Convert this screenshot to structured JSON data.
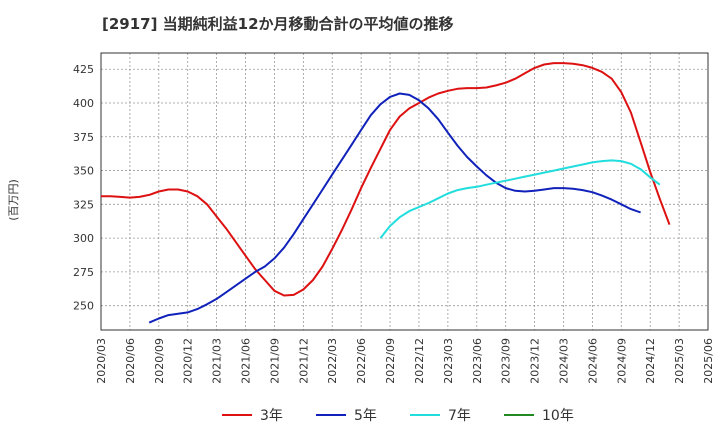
{
  "chart_data": {
    "type": "line",
    "title": "[2917]  当期純利益12か月移動合計の平均値の推移",
    "ylabel": "(百万円)",
    "xlabel": "",
    "ylim": [
      232,
      437
    ],
    "xlim": [
      "2020-03",
      "2025-06"
    ],
    "yticks": [
      250,
      275,
      300,
      325,
      350,
      375,
      400,
      425
    ],
    "xticks": [
      "2020/03",
      "2020/06",
      "2020/09",
      "2020/12",
      "2021/03",
      "2021/06",
      "2021/09",
      "2021/12",
      "2022/03",
      "2022/06",
      "2022/09",
      "2022/12",
      "2023/03",
      "2023/06",
      "2023/09",
      "2023/12",
      "2024/03",
      "2024/06",
      "2024/09",
      "2024/12",
      "2025/03",
      "2025/06"
    ],
    "grid": true,
    "legend_position": "bottom",
    "series": [
      {
        "name": "3年",
        "color": "#dd1111",
        "points": [
          [
            "2020-03",
            331
          ],
          [
            "2020-04",
            331
          ],
          [
            "2020-05",
            330.5
          ],
          [
            "2020-06",
            330
          ],
          [
            "2020-07",
            330.5
          ],
          [
            "2020-08",
            332
          ],
          [
            "2020-09",
            334.5
          ],
          [
            "2020-10",
            336
          ],
          [
            "2020-11",
            336
          ],
          [
            "2020-12",
            334.5
          ],
          [
            "2021-01",
            331
          ],
          [
            "2021-02",
            325
          ],
          [
            "2021-03",
            316
          ],
          [
            "2021-04",
            307
          ],
          [
            "2021-05",
            297
          ],
          [
            "2021-06",
            287
          ],
          [
            "2021-07",
            277
          ],
          [
            "2021-08",
            269
          ],
          [
            "2021-09",
            261
          ],
          [
            "2021-10",
            257.5
          ],
          [
            "2021-11",
            258
          ],
          [
            "2021-12",
            262
          ],
          [
            "2022-01",
            269
          ],
          [
            "2022-02",
            279
          ],
          [
            "2022-03",
            292
          ],
          [
            "2022-04",
            306
          ],
          [
            "2022-05",
            321
          ],
          [
            "2022-06",
            337
          ],
          [
            "2022-07",
            352
          ],
          [
            "2022-08",
            366
          ],
          [
            "2022-09",
            380
          ],
          [
            "2022-10",
            390
          ],
          [
            "2022-11",
            396
          ],
          [
            "2022-12",
            400
          ],
          [
            "2023-01",
            404
          ],
          [
            "2023-02",
            407
          ],
          [
            "2023-03",
            409
          ],
          [
            "2023-04",
            410.5
          ],
          [
            "2023-05",
            411
          ],
          [
            "2023-06",
            411
          ],
          [
            "2023-07",
            411.5
          ],
          [
            "2023-08",
            413
          ],
          [
            "2023-09",
            415
          ],
          [
            "2023-10",
            418
          ],
          [
            "2023-11",
            422
          ],
          [
            "2023-12",
            426
          ],
          [
            "2024-01",
            428.5
          ],
          [
            "2024-02",
            429.5
          ],
          [
            "2024-03",
            429.5
          ],
          [
            "2024-04",
            429
          ],
          [
            "2024-05",
            428
          ],
          [
            "2024-06",
            426
          ],
          [
            "2024-07",
            423
          ],
          [
            "2024-08",
            418
          ],
          [
            "2024-09",
            408
          ],
          [
            "2024-10",
            393
          ],
          [
            "2024-11",
            371
          ],
          [
            "2024-12",
            349
          ],
          [
            "2025-01",
            329
          ],
          [
            "2025-02",
            310
          ]
        ]
      },
      {
        "name": "5年",
        "color": "#1122bb",
        "points": [
          [
            "2020-08",
            237.5
          ],
          [
            "2020-09",
            240.5
          ],
          [
            "2020-10",
            243
          ],
          [
            "2020-11",
            244
          ],
          [
            "2020-12",
            245
          ],
          [
            "2021-01",
            247.5
          ],
          [
            "2021-02",
            251
          ],
          [
            "2021-03",
            255
          ],
          [
            "2021-04",
            260
          ],
          [
            "2021-05",
            265
          ],
          [
            "2021-06",
            270
          ],
          [
            "2021-07",
            275
          ],
          [
            "2021-08",
            279
          ],
          [
            "2021-09",
            285
          ],
          [
            "2021-10",
            293
          ],
          [
            "2021-11",
            303
          ],
          [
            "2021-12",
            314
          ],
          [
            "2022-01",
            325
          ],
          [
            "2022-02",
            336
          ],
          [
            "2022-03",
            347
          ],
          [
            "2022-04",
            358
          ],
          [
            "2022-05",
            369
          ],
          [
            "2022-06",
            380
          ],
          [
            "2022-07",
            391
          ],
          [
            "2022-08",
            399
          ],
          [
            "2022-09",
            404.5
          ],
          [
            "2022-10",
            407
          ],
          [
            "2022-11",
            406
          ],
          [
            "2022-12",
            402
          ],
          [
            "2023-01",
            396
          ],
          [
            "2023-02",
            388
          ],
          [
            "2023-03",
            378
          ],
          [
            "2023-04",
            368.5
          ],
          [
            "2023-05",
            360
          ],
          [
            "2023-06",
            353
          ],
          [
            "2023-07",
            346.5
          ],
          [
            "2023-08",
            341
          ],
          [
            "2023-09",
            337
          ],
          [
            "2023-10",
            335
          ],
          [
            "2023-11",
            334.5
          ],
          [
            "2023-12",
            335
          ],
          [
            "2024-01",
            336
          ],
          [
            "2024-02",
            337
          ],
          [
            "2024-03",
            337
          ],
          [
            "2024-04",
            336.5
          ],
          [
            "2024-05",
            335.5
          ],
          [
            "2024-06",
            334
          ],
          [
            "2024-07",
            331.5
          ],
          [
            "2024-08",
            328.5
          ],
          [
            "2024-09",
            325
          ],
          [
            "2024-10",
            321.5
          ],
          [
            "2024-11",
            319
          ]
        ]
      },
      {
        "name": "7年",
        "color": "#22dddd",
        "points": [
          [
            "2022-08",
            300
          ],
          [
            "2022-09",
            309
          ],
          [
            "2022-10",
            315.5
          ],
          [
            "2022-11",
            320
          ],
          [
            "2022-12",
            323
          ],
          [
            "2023-01",
            326
          ],
          [
            "2023-02",
            329.5
          ],
          [
            "2023-03",
            333
          ],
          [
            "2023-04",
            335.5
          ],
          [
            "2023-05",
            337
          ],
          [
            "2023-06",
            338
          ],
          [
            "2023-07",
            339.5
          ],
          [
            "2023-08",
            341
          ],
          [
            "2023-09",
            342.5
          ],
          [
            "2023-10",
            344
          ],
          [
            "2023-11",
            345.5
          ],
          [
            "2023-12",
            347
          ],
          [
            "2024-01",
            348.5
          ],
          [
            "2024-02",
            350
          ],
          [
            "2024-03",
            351.5
          ],
          [
            "2024-04",
            353
          ],
          [
            "2024-05",
            354.5
          ],
          [
            "2024-06",
            356
          ],
          [
            "2024-07",
            357
          ],
          [
            "2024-08",
            357.5
          ],
          [
            "2024-09",
            357
          ],
          [
            "2024-10",
            355
          ],
          [
            "2024-11",
            351
          ],
          [
            "2024-12",
            345
          ],
          [
            "2025-01",
            339.5
          ]
        ]
      },
      {
        "name": "10年",
        "color": "#228822",
        "points": []
      }
    ]
  }
}
